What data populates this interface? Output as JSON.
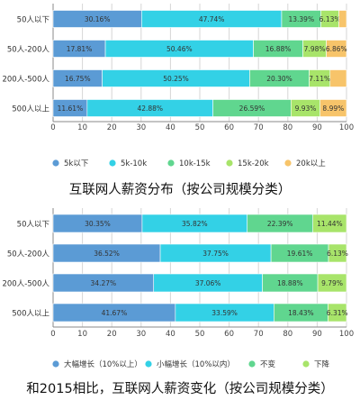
{
  "chart_data": [
    {
      "type": "bar",
      "orientation": "horizontal",
      "stacked": true,
      "title": "互联网人薪资分布（按公司规模分类）",
      "categories": [
        "50人以下",
        "50人-200人",
        "200人-500人",
        "500人以上"
      ],
      "series": [
        {
          "name": "5k以下",
          "color": "#5b9bd5",
          "values": [
            30.16,
            17.81,
            16.75,
            11.61
          ],
          "labels": [
            "30.16%",
            "17.81%",
            "16.75%",
            "11.61%"
          ]
        },
        {
          "name": "5k-10k",
          "color": "#33d1e6",
          "values": [
            47.74,
            50.46,
            50.25,
            42.88
          ],
          "labels": [
            "47.74%",
            "50.46%",
            "50.25%",
            "42.88%"
          ]
        },
        {
          "name": "10k-15k",
          "color": "#60d68f",
          "values": [
            13.39,
            16.88,
            20.3,
            26.59
          ],
          "labels": [
            "13.39%",
            "16.88%",
            "20.30%",
            "26.59%"
          ]
        },
        {
          "name": "15k-20k",
          "color": "#a8e46a",
          "values": [
            6.13,
            7.98,
            7.11,
            9.93
          ],
          "labels": [
            "6.13%",
            "7.98%",
            "7.11%",
            "9.93%"
          ]
        },
        {
          "name": "20k以上",
          "color": "#f7c46a",
          "values": [
            2.58,
            6.86,
            5.59,
            8.99
          ],
          "labels": [
            "",
            "6.86%",
            "",
            "8.99%"
          ]
        }
      ],
      "xlim": [
        0,
        100
      ],
      "xticks": [
        "0",
        "10",
        "20",
        "30",
        "40",
        "50",
        "60",
        "70",
        "80",
        "90",
        "100"
      ],
      "grid": true,
      "legend": "bottom"
    },
    {
      "type": "bar",
      "orientation": "horizontal",
      "stacked": true,
      "title": "和2015相比，互联网人薪资变化（按公司规模分类）",
      "categories": [
        "50人以下",
        "50人-200人",
        "200人-500人",
        "500人以上"
      ],
      "series": [
        {
          "name": "大幅增长（10%以上）",
          "color": "#5b9bd5",
          "values": [
            30.35,
            36.52,
            34.27,
            41.67
          ],
          "labels": [
            "30.35%",
            "36.52%",
            "34.27%",
            "41.67%"
          ]
        },
        {
          "name": "小幅增长（10%以内）",
          "color": "#33d1e6",
          "values": [
            35.82,
            37.75,
            37.06,
            33.59
          ],
          "labels": [
            "35.82%",
            "37.75%",
            "37.06%",
            "33.59%"
          ]
        },
        {
          "name": "不变",
          "color": "#60d68f",
          "values": [
            22.39,
            19.61,
            18.88,
            18.43
          ],
          "labels": [
            "22.39%",
            "19.61%",
            "18.88%",
            "18.43%"
          ]
        },
        {
          "name": "下降",
          "color": "#a8e46a",
          "values": [
            11.44,
            6.13,
            9.79,
            6.31
          ],
          "labels": [
            "11.44%",
            "6.13%",
            "9.79%",
            "6.31%"
          ]
        }
      ],
      "xlim": [
        0,
        100
      ],
      "xticks": [
        "0",
        "10",
        "20",
        "30",
        "40",
        "50",
        "60",
        "70",
        "80",
        "90",
        "100"
      ],
      "grid": true,
      "legend": "bottom"
    }
  ]
}
